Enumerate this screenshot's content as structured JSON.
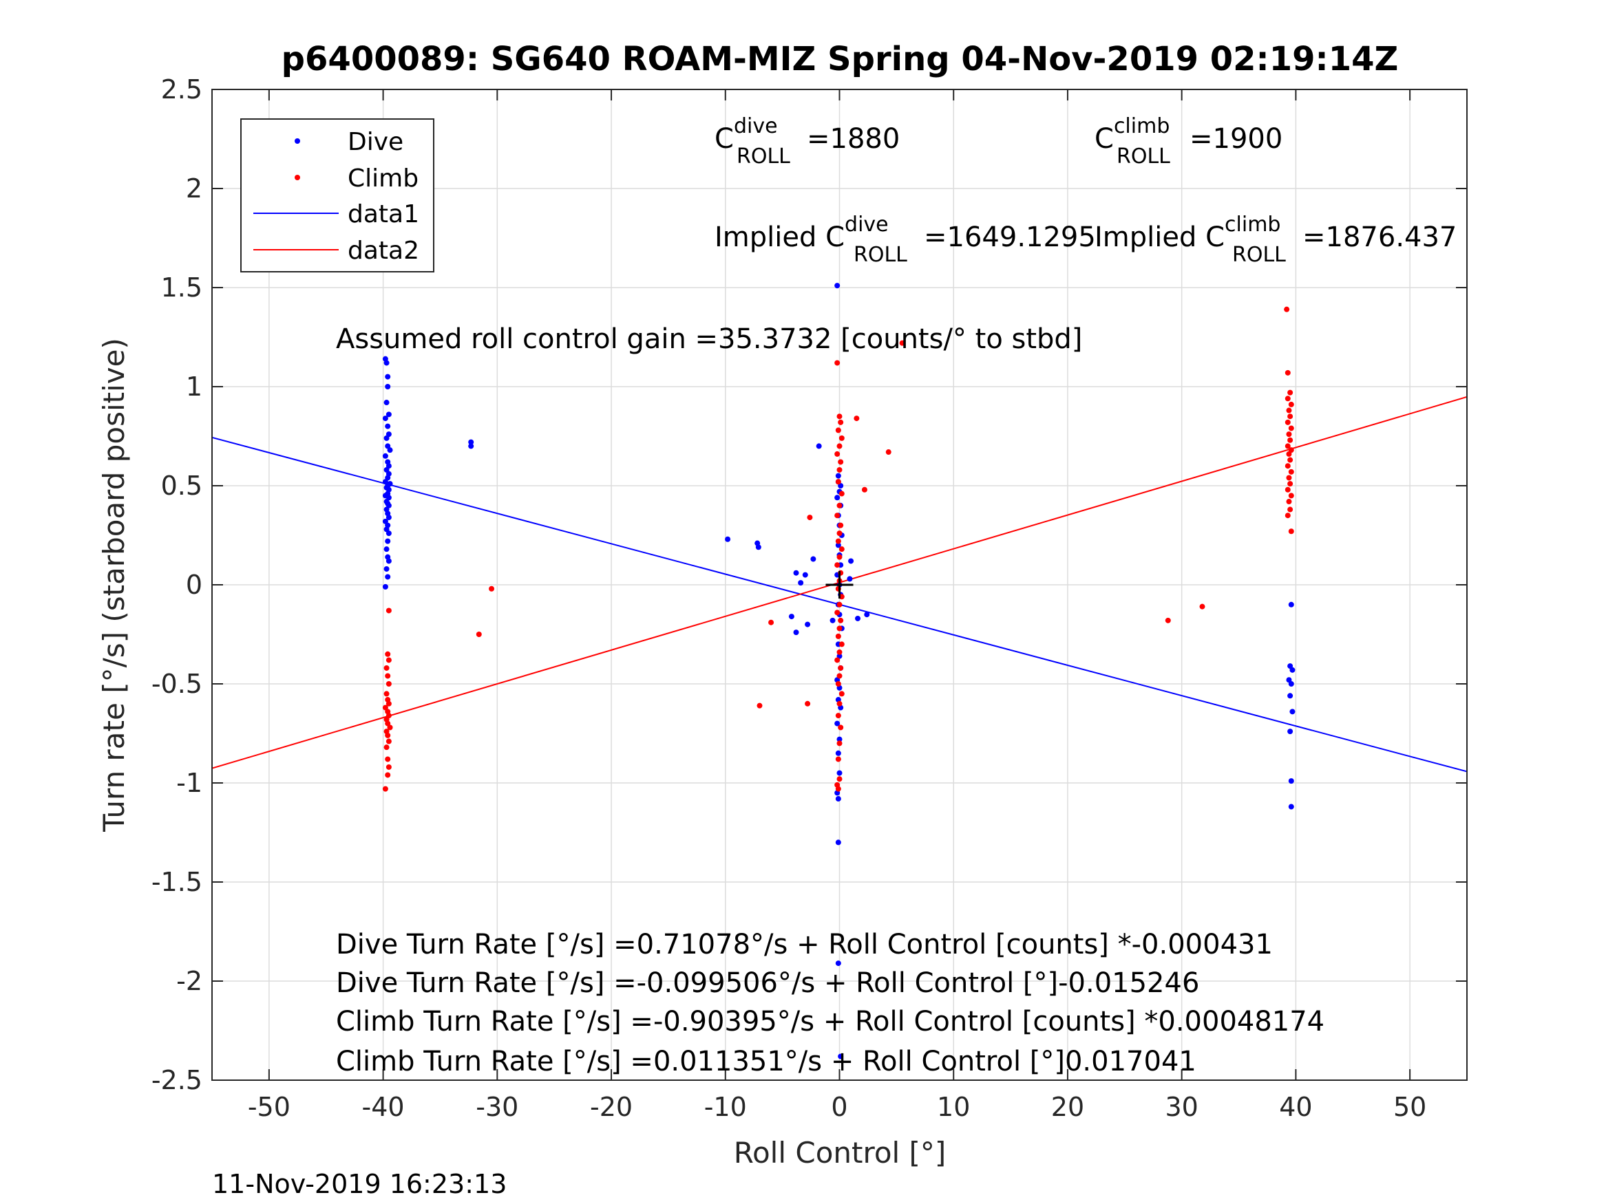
{
  "chart_data": {
    "type": "scatter",
    "title": "p6400089: SG640 ROAM-MIZ Spring 04-Nov-2019 02:19:14Z",
    "xlabel": "Roll Control [°]",
    "ylabel": "Turn rate [°/s] (starboard positive)",
    "xlim": [
      -55,
      55
    ],
    "ylim": [
      -2.5,
      2.5
    ],
    "grid": true,
    "legend_position": "top-left",
    "x_ticks": [
      -50,
      -40,
      -30,
      -20,
      -10,
      0,
      10,
      20,
      30,
      40,
      50
    ],
    "x_tick_labels": [
      "-50",
      "-40",
      "-30",
      "-20",
      "-10",
      "0",
      "10",
      "20",
      "30",
      "40",
      "50"
    ],
    "y_ticks": [
      2.5,
      2,
      1.5,
      1,
      0.5,
      0,
      -0.5,
      -1,
      -1.5,
      -2,
      -2.5
    ],
    "y_tick_labels": [
      "2.5",
      "2",
      "1.5",
      "1",
      "0.5",
      "0",
      "-0.5",
      "-1",
      "-1.5",
      "-2",
      "-2.5"
    ],
    "timestamp": "11-Nov-2019 16:23:13",
    "legend": [
      {
        "label": "Dive",
        "kind": "marker",
        "color": "#0000ff"
      },
      {
        "label": "Climb",
        "kind": "marker",
        "color": "#ff0000"
      },
      {
        "label": "data1",
        "kind": "line",
        "color": "#0000ff"
      },
      {
        "label": "data2",
        "kind": "line",
        "color": "#ff0000"
      }
    ],
    "annotations": {
      "c_dive_base": "C",
      "c_dive_sup": "dive",
      "c_dive_sub": "ROLL",
      "c_dive_val": "=1880",
      "c_climb_base": "C",
      "c_climb_sup": "climb",
      "c_climb_sub": "ROLL",
      "c_climb_val": "=1900",
      "implied_dive_pre": "Implied C",
      "implied_dive_sup": "dive",
      "implied_dive_sub": "ROLL",
      "implied_dive_val": "=1649.1295",
      "implied_climb_pre": "Implied C",
      "implied_climb_sup": "climb",
      "implied_climb_sub": "ROLL",
      "implied_climb_val": "=1876.437",
      "gain": "Assumed roll control gain =35.3732 [counts/° to stbd]",
      "eq1": "Dive Turn Rate [°/s] =0.71078°/s + Roll Control [counts] *-0.000431",
      "eq2": "Dive Turn Rate [°/s] =-0.099506°/s + Roll Control [°]-0.015246",
      "eq3": "Climb Turn Rate [°/s] =-0.90395°/s + Roll Control [counts] *0.00048174",
      "eq4": "Climb Turn Rate [°/s] =0.011351°/s + Roll Control [°]0.017041"
    },
    "series": [
      {
        "name": "Dive",
        "kind": "scatter",
        "color": "#0000ff",
        "points": [
          [
            -39.8,
            1.14
          ],
          [
            -39.7,
            1.12
          ],
          [
            -39.6,
            1.05
          ],
          [
            -39.6,
            1.0
          ],
          [
            -39.7,
            0.92
          ],
          [
            -39.5,
            0.86
          ],
          [
            -39.8,
            0.84
          ],
          [
            -39.6,
            0.8
          ],
          [
            -39.5,
            0.76
          ],
          [
            -39.7,
            0.74
          ],
          [
            -39.6,
            0.7
          ],
          [
            -39.4,
            0.68
          ],
          [
            -39.8,
            0.65
          ],
          [
            -39.6,
            0.62
          ],
          [
            -39.5,
            0.6
          ],
          [
            -39.7,
            0.58
          ],
          [
            -39.5,
            0.56
          ],
          [
            -39.6,
            0.54
          ],
          [
            -39.8,
            0.52
          ],
          [
            -39.4,
            0.51
          ],
          [
            -39.6,
            0.5
          ],
          [
            -39.7,
            0.49
          ],
          [
            -39.5,
            0.48
          ],
          [
            -39.6,
            0.46
          ],
          [
            -39.8,
            0.45
          ],
          [
            -39.5,
            0.44
          ],
          [
            -39.7,
            0.42
          ],
          [
            -39.6,
            0.41
          ],
          [
            -39.5,
            0.4
          ],
          [
            -39.7,
            0.38
          ],
          [
            -39.6,
            0.36
          ],
          [
            -39.5,
            0.34
          ],
          [
            -39.8,
            0.32
          ],
          [
            -39.6,
            0.3
          ],
          [
            -39.7,
            0.28
          ],
          [
            -39.5,
            0.26
          ],
          [
            -39.6,
            0.22
          ],
          [
            -39.7,
            0.18
          ],
          [
            -39.6,
            0.14
          ],
          [
            -39.5,
            0.12
          ],
          [
            -39.7,
            0.08
          ],
          [
            -39.6,
            0.04
          ],
          [
            -39.8,
            -0.01
          ],
          [
            -32.3,
            0.72
          ],
          [
            -32.3,
            0.7
          ],
          [
            -9.8,
            0.23
          ],
          [
            -7.2,
            0.21
          ],
          [
            -7.1,
            0.19
          ],
          [
            -1.8,
            0.7
          ],
          [
            -3.8,
            0.06
          ],
          [
            -3.0,
            0.05
          ],
          [
            -2.3,
            0.13
          ],
          [
            -3.4,
            0.01
          ],
          [
            -4.2,
            -0.16
          ],
          [
            -3.8,
            -0.24
          ],
          [
            -2.8,
            -0.2
          ],
          [
            -0.6,
            -0.18
          ],
          [
            1.6,
            -0.17
          ],
          [
            2.4,
            -0.15
          ],
          [
            1.0,
            0.12
          ],
          [
            0.9,
            0.03
          ],
          [
            -0.2,
            1.51
          ],
          [
            -0.1,
            0.55
          ],
          [
            -0.1,
            0.52
          ],
          [
            0.1,
            0.5
          ],
          [
            0.0,
            0.47
          ],
          [
            -0.2,
            0.44
          ],
          [
            0.1,
            0.4
          ],
          [
            -0.1,
            0.35
          ],
          [
            0.0,
            0.3
          ],
          [
            0.2,
            0.25
          ],
          [
            -0.1,
            0.2
          ],
          [
            0.0,
            0.15
          ],
          [
            0.1,
            0.1
          ],
          [
            -0.2,
            0.05
          ],
          [
            0.0,
            0.0
          ],
          [
            0.1,
            -0.05
          ],
          [
            -0.1,
            -0.1
          ],
          [
            0.0,
            -0.15
          ],
          [
            0.2,
            -0.22
          ],
          [
            -0.1,
            -0.3
          ],
          [
            0.0,
            -0.36
          ],
          [
            0.1,
            -0.42
          ],
          [
            -0.2,
            -0.48
          ],
          [
            0.0,
            -0.52
          ],
          [
            -0.1,
            -0.58
          ],
          [
            0.1,
            -0.62
          ],
          [
            -0.2,
            -0.7
          ],
          [
            0.0,
            -0.78
          ],
          [
            -0.1,
            -0.85
          ],
          [
            0.0,
            -0.95
          ],
          [
            -0.2,
            -1.05
          ],
          [
            -0.1,
            -1.08
          ],
          [
            -0.1,
            -1.3
          ],
          [
            -0.1,
            -1.91
          ],
          [
            0.1,
            -2.38
          ],
          [
            39.6,
            -0.1
          ],
          [
            39.5,
            -0.41
          ],
          [
            39.7,
            -0.43
          ],
          [
            39.4,
            -0.48
          ],
          [
            39.6,
            -0.5
          ],
          [
            39.5,
            -0.56
          ],
          [
            39.7,
            -0.64
          ],
          [
            39.5,
            -0.74
          ],
          [
            39.6,
            -0.99
          ],
          [
            39.6,
            -1.12
          ]
        ]
      },
      {
        "name": "Climb",
        "kind": "scatter",
        "color": "#ff0000",
        "points": [
          [
            -39.5,
            -0.13
          ],
          [
            -39.6,
            -0.35
          ],
          [
            -39.5,
            -0.38
          ],
          [
            -39.7,
            -0.42
          ],
          [
            -39.6,
            -0.46
          ],
          [
            -39.5,
            -0.5
          ],
          [
            -39.7,
            -0.55
          ],
          [
            -39.6,
            -0.58
          ],
          [
            -39.5,
            -0.6
          ],
          [
            -39.8,
            -0.62
          ],
          [
            -39.6,
            -0.64
          ],
          [
            -39.5,
            -0.66
          ],
          [
            -39.7,
            -0.68
          ],
          [
            -39.6,
            -0.7
          ],
          [
            -39.4,
            -0.72
          ],
          [
            -39.7,
            -0.74
          ],
          [
            -39.6,
            -0.76
          ],
          [
            -39.5,
            -0.79
          ],
          [
            -39.7,
            -0.82
          ],
          [
            -39.6,
            -0.88
          ],
          [
            -39.5,
            -0.92
          ],
          [
            -39.6,
            -0.96
          ],
          [
            -39.8,
            -1.03
          ],
          [
            -30.5,
            -0.02
          ],
          [
            -31.6,
            -0.25
          ],
          [
            -6.0,
            -0.19
          ],
          [
            -7.0,
            -0.61
          ],
          [
            -2.8,
            -0.6
          ],
          [
            -2.6,
            0.34
          ],
          [
            1.5,
            0.84
          ],
          [
            2.2,
            0.48
          ],
          [
            4.3,
            0.67
          ],
          [
            5.5,
            1.22
          ],
          [
            -0.2,
            1.12
          ],
          [
            0.0,
            0.85
          ],
          [
            0.1,
            0.82
          ],
          [
            -0.1,
            0.78
          ],
          [
            0.2,
            0.74
          ],
          [
            0.0,
            0.7
          ],
          [
            -0.2,
            0.66
          ],
          [
            0.1,
            0.62
          ],
          [
            0.0,
            0.58
          ],
          [
            -0.1,
            0.52
          ],
          [
            0.2,
            0.46
          ],
          [
            0.0,
            0.4
          ],
          [
            -0.2,
            0.35
          ],
          [
            0.1,
            0.3
          ],
          [
            0.0,
            0.26
          ],
          [
            -0.1,
            0.22
          ],
          [
            0.2,
            0.18
          ],
          [
            0.0,
            0.14
          ],
          [
            -0.2,
            0.1
          ],
          [
            0.1,
            0.06
          ],
          [
            0.0,
            0.02
          ],
          [
            -0.1,
            -0.02
          ],
          [
            0.2,
            -0.06
          ],
          [
            0.0,
            -0.1
          ],
          [
            -0.2,
            -0.14
          ],
          [
            0.1,
            -0.18
          ],
          [
            0.0,
            -0.22
          ],
          [
            -0.1,
            -0.26
          ],
          [
            0.2,
            -0.3
          ],
          [
            0.0,
            -0.34
          ],
          [
            -0.2,
            -0.38
          ],
          [
            0.1,
            -0.42
          ],
          [
            0.0,
            -0.46
          ],
          [
            -0.1,
            -0.5
          ],
          [
            0.2,
            -0.55
          ],
          [
            0.0,
            -0.6
          ],
          [
            -0.1,
            -0.66
          ],
          [
            0.1,
            -0.72
          ],
          [
            0.0,
            -0.8
          ],
          [
            -0.1,
            -0.88
          ],
          [
            0.0,
            -0.98
          ],
          [
            -0.2,
            -1.01
          ],
          [
            -0.1,
            -1.03
          ],
          [
            28.8,
            -0.18
          ],
          [
            31.8,
            -0.11
          ],
          [
            39.2,
            1.39
          ],
          [
            39.3,
            1.07
          ],
          [
            39.5,
            0.97
          ],
          [
            39.3,
            0.94
          ],
          [
            39.6,
            0.91
          ],
          [
            39.4,
            0.88
          ],
          [
            39.5,
            0.85
          ],
          [
            39.3,
            0.82
          ],
          [
            39.6,
            0.79
          ],
          [
            39.4,
            0.76
          ],
          [
            39.5,
            0.73
          ],
          [
            39.3,
            0.7
          ],
          [
            39.6,
            0.68
          ],
          [
            39.4,
            0.66
          ],
          [
            39.5,
            0.63
          ],
          [
            39.3,
            0.6
          ],
          [
            39.6,
            0.57
          ],
          [
            39.4,
            0.54
          ],
          [
            39.5,
            0.51
          ],
          [
            39.3,
            0.48
          ],
          [
            39.6,
            0.45
          ],
          [
            39.4,
            0.42
          ],
          [
            39.5,
            0.38
          ],
          [
            39.3,
            0.35
          ],
          [
            39.6,
            0.27
          ]
        ]
      },
      {
        "name": "data1",
        "kind": "line",
        "color": "#0000ff",
        "x": [
          -55,
          55
        ],
        "y": [
          0.7435,
          -0.9426
        ]
      },
      {
        "name": "data2",
        "kind": "line",
        "color": "#ff0000",
        "x": [
          -55,
          55
        ],
        "y": [
          -0.9259,
          0.9486
        ]
      }
    ],
    "origin_marker": [
      0,
      0
    ]
  }
}
